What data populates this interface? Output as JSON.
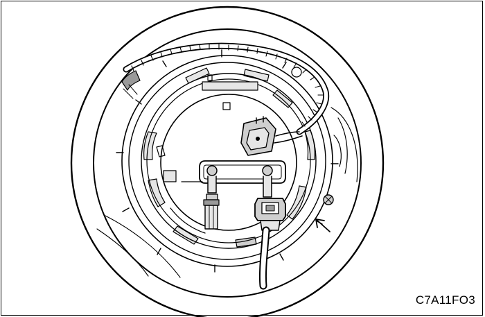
{
  "figure": {
    "code": "C7A11FO3",
    "subject": "fuel-pump-module-access",
    "line_color": "#000000",
    "fill_colors": {
      "background": "#ffffff",
      "shade_light": "#e6e6e6",
      "shade_mid": "#cfcfcf",
      "shade_dark": "#9a9a9a"
    },
    "icons": [
      "arrow-icon",
      "electrical-connector-icon",
      "fuel-line-connector-icon",
      "screw-icon"
    ]
  }
}
